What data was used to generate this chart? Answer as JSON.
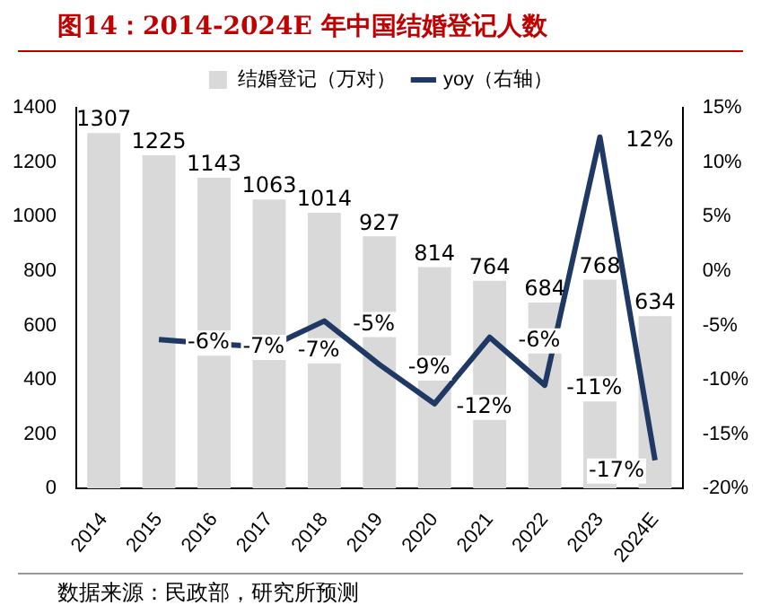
{
  "chart_data": {
    "type": "bar",
    "title": "图14：2014-2024E 年中国结婚登记人数",
    "categories": [
      "2014",
      "2015",
      "2016",
      "2017",
      "2018",
      "2019",
      "2020",
      "2021",
      "2022",
      "2023",
      "2024E"
    ],
    "series": [
      {
        "name": "结婚登记（万对）",
        "color": "#d9d9d9",
        "values": [
          1307,
          1225,
          1143,
          1063,
          1014,
          927,
          814,
          764,
          684,
          768,
          634
        ],
        "value_labels": [
          "1307",
          "1225",
          "1143",
          "1063",
          "1014",
          "927",
          "814",
          "764",
          "684",
          "768",
          "634"
        ]
      },
      {
        "name": "yoy（右轴）",
        "type": "line",
        "axis": "y2",
        "color": "#1f3864",
        "values": [
          null,
          -6.3,
          -6.7,
          -7.0,
          -4.6,
          -8.6,
          -12.2,
          -6.1,
          -10.5,
          12.3,
          -17.4
        ],
        "value_labels": [
          null,
          "-6%",
          "-7%",
          "-7%",
          "-5%",
          "-9%",
          "-12%",
          "-6%",
          "-11%",
          "12%",
          "-17%"
        ]
      }
    ],
    "ylim": [
      0,
      1400
    ],
    "yticks": [
      0,
      200,
      400,
      600,
      800,
      1000,
      1200,
      1400
    ],
    "y2lim": [
      -20,
      15
    ],
    "y2ticks": [
      {
        "value": -20,
        "label": "-20%"
      },
      {
        "value": -15,
        "label": "-15%"
      },
      {
        "value": -10,
        "label": "-10%"
      },
      {
        "value": -5,
        "label": "-5%"
      },
      {
        "value": 0,
        "label": "0%"
      },
      {
        "value": 5,
        "label": "5%"
      },
      {
        "value": 10,
        "label": "10%"
      },
      {
        "value": 15,
        "label": "15%"
      }
    ],
    "legend": "top",
    "grid": false,
    "marker": "none",
    "annotations": [
      "数据来源：民政部，研究所预测"
    ]
  }
}
